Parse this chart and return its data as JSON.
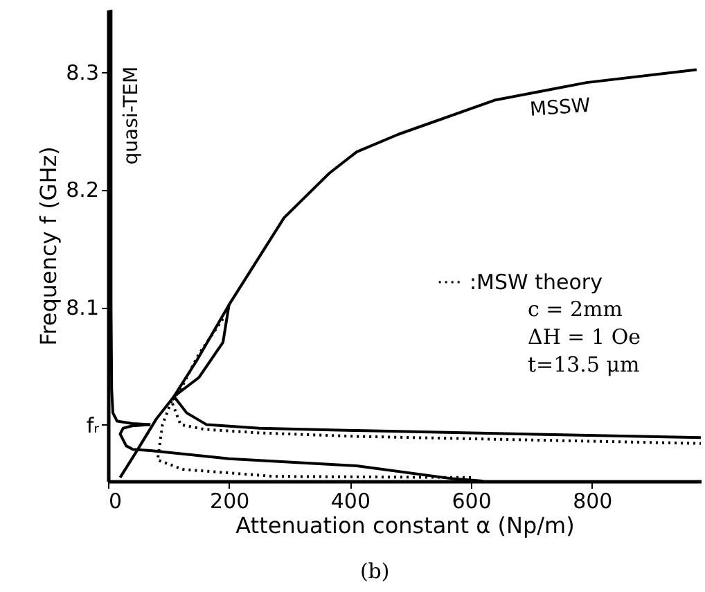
{
  "chart_data": {
    "type": "line",
    "xlabel": "Attenuation constant α (Np/m)",
    "ylabel": "Frequency f (GHz)",
    "xlim": [
      0,
      980
    ],
    "ylim": [
      7.952,
      8.353
    ],
    "xticks": [
      0,
      200,
      400,
      600,
      800
    ],
    "yticks": [
      {
        "value": 8.0,
        "label": "fᵣ"
      },
      8.1,
      8.2,
      8.3
    ],
    "grid": false,
    "legend": "right",
    "marker": "none",
    "series": [
      {
        "color": "#000000",
        "line_style": "solid",
        "x": [
          5,
          5,
          6,
          8,
          15,
          40,
          70
        ],
        "values": [
          8.353,
          8.1,
          8.03,
          8.01,
          8.003,
          8.001,
          8.0
        ]
      },
      {
        "color": "#000000",
        "line_style": "solid",
        "x": [
          70,
          40,
          25,
          20,
          30,
          41,
          70,
          200,
          411,
          570,
          620
        ],
        "values": [
          8.0,
          7.999,
          7.997,
          7.992,
          7.982,
          7.979,
          7.978,
          7.971,
          7.965,
          7.954,
          7.952
        ]
      },
      {
        "color": "#000000",
        "line_style": "solid",
        "x": [
          20,
          48,
          80,
          109,
          146,
          200,
          291,
          366,
          411,
          480,
          639,
          791,
          973
        ],
        "values": [
          7.955,
          7.978,
          8.005,
          8.024,
          8.054,
          8.102,
          8.176,
          8.214,
          8.232,
          8.247,
          8.276,
          8.291,
          8.302
        ]
      },
      {
        "color": "#000000",
        "line_style": "solid",
        "x": [
          200,
          190,
          150,
          109,
          130,
          163,
          250,
          411,
          600,
          980
        ],
        "values": [
          8.102,
          8.07,
          8.04,
          8.024,
          8.01,
          8.0,
          7.997,
          7.995,
          7.993,
          7.989
        ]
      },
      {
        "name": ":MSW theory",
        "color": "#000000",
        "line_style": "dotted",
        "x": [
          190,
          150,
          120,
          105,
          120,
          160,
          250,
          411,
          600,
          980
        ],
        "values": [
          8.09,
          8.06,
          8.03,
          8.02,
          8.0,
          7.996,
          7.993,
          7.99,
          7.988,
          7.984
        ]
      },
      {
        "color": "#000000",
        "line_style": "dotted",
        "x": [
          105,
          90,
          82,
          123,
          275,
          600
        ],
        "values": [
          8.02,
          8.0,
          7.97,
          7.962,
          7.956,
          7.955
        ]
      }
    ],
    "annotations": [
      {
        "text": "quasi-TEM",
        "x": 5,
        "y": 8.3
      },
      {
        "text": "MSSW",
        "x": 639,
        "y": 8.276
      },
      "c = 2mm",
      "ΔH = 1 Oe",
      "t=13.5 μm",
      "(b)"
    ]
  }
}
